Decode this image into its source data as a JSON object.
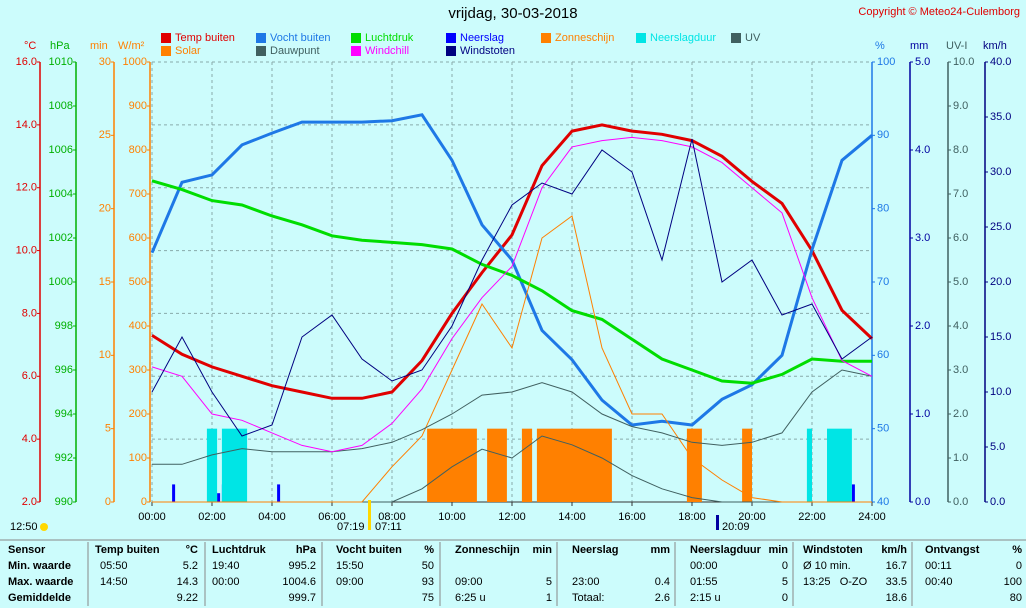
{
  "chart_data": {
    "type": "line",
    "title": "vrijdag, 30-03-2018",
    "copyright": "Copyright © Meteo24-Culemborg",
    "xlim": [
      0,
      24
    ],
    "xticks": [
      {
        "value": 0,
        "label": "00:00"
      },
      {
        "value": 2,
        "label": "02:00"
      },
      {
        "value": 4,
        "label": "04:00"
      },
      {
        "value": 6,
        "label": "06:00"
      },
      {
        "value": 8,
        "label": "08:00"
      },
      {
        "value": 10,
        "label": "10:00"
      },
      {
        "value": 12,
        "label": "12:00"
      },
      {
        "value": 14,
        "label": "14:00"
      },
      {
        "value": 16,
        "label": "16:00"
      },
      {
        "value": 18,
        "label": "18:00"
      },
      {
        "value": 20,
        "label": "20:00"
      },
      {
        "value": 22,
        "label": "22:00"
      },
      {
        "value": 24,
        "label": "24:00"
      }
    ],
    "grid": true,
    "x": [
      0,
      1,
      2,
      3,
      4,
      5,
      6,
      7,
      8,
      9,
      10,
      11,
      12,
      13,
      14,
      15,
      16,
      17,
      18,
      19,
      20,
      21,
      22,
      23,
      24
    ],
    "axes": [
      {
        "label": "°C",
        "color": "#e00000",
        "lim": [
          2,
          16
        ],
        "ticks": [
          {
            "value": 2,
            "label": "2.0"
          },
          {
            "value": 4,
            "label": "4.0"
          },
          {
            "value": 6,
            "label": "6.0"
          },
          {
            "value": 8,
            "label": "8.0"
          },
          {
            "value": 10,
            "label": "10.0"
          },
          {
            "value": 12,
            "label": "12.0"
          },
          {
            "value": 14,
            "label": "14.0"
          },
          {
            "value": 16,
            "label": "16.0"
          }
        ]
      },
      {
        "label": "hPa",
        "color": "#00b000",
        "lim": [
          990,
          1010
        ],
        "ticks": [
          990,
          992,
          994,
          996,
          998,
          1000,
          1002,
          1004,
          1006,
          1008,
          1010
        ]
      },
      {
        "label": "min",
        "color": "#ff8000",
        "lim": [
          0,
          30
        ],
        "ticks": [
          0,
          5,
          10,
          15,
          20,
          25,
          30
        ]
      },
      {
        "label": "W/m²",
        "color": "#ff8000",
        "lim": [
          0,
          1000
        ],
        "ticks": [
          0,
          100,
          200,
          300,
          400,
          500,
          600,
          700,
          800,
          900,
          1000
        ]
      },
      {
        "label": "%",
        "color": "#1e78e6",
        "lim": [
          40,
          100
        ],
        "ticks": [
          40,
          50,
          60,
          70,
          80,
          90,
          100
        ]
      },
      {
        "label": "mm",
        "color": "#0000a0",
        "lim": [
          0,
          5
        ],
        "ticks": [
          {
            "value": 0,
            "label": "0.0"
          },
          {
            "value": 1,
            "label": "1.0"
          },
          {
            "value": 2,
            "label": "2.0"
          },
          {
            "value": 3,
            "label": "3.0"
          },
          {
            "value": 4,
            "label": "4.0"
          },
          {
            "value": 5,
            "label": "5.0"
          }
        ]
      },
      {
        "label": "UV-I",
        "color": "#406060",
        "lim": [
          0,
          10
        ],
        "ticks": [
          {
            "value": 0,
            "label": "0.0"
          },
          {
            "value": 1,
            "label": "1.0"
          },
          {
            "value": 2,
            "label": "2.0"
          },
          {
            "value": 3,
            "label": "3.0"
          },
          {
            "value": 4,
            "label": "4.0"
          },
          {
            "value": 5,
            "label": "5.0"
          },
          {
            "value": 6,
            "label": "6.0"
          },
          {
            "value": 7,
            "label": "7.0"
          },
          {
            "value": 8,
            "label": "8.0"
          },
          {
            "value": 9,
            "label": "9.0"
          },
          {
            "value": 10,
            "label": "10.0"
          }
        ]
      },
      {
        "label": "km/h",
        "color": "#000080",
        "lim": [
          0,
          40
        ],
        "ticks": [
          {
            "value": 0,
            "label": "0.0"
          },
          {
            "value": 5,
            "label": "5.0"
          },
          {
            "value": 10,
            "label": "10.0"
          },
          {
            "value": 15,
            "label": "15.0"
          },
          {
            "value": 20,
            "label": "20.0"
          },
          {
            "value": 25,
            "label": "25.0"
          },
          {
            "value": 30,
            "label": "30.0"
          },
          {
            "value": 35,
            "label": "35.0"
          },
          {
            "value": 40,
            "label": "40.0"
          }
        ]
      }
    ],
    "series": [
      {
        "name": "Temp buiten",
        "color": "#e00000",
        "type": "line",
        "axis": 0,
        "width": 3,
        "values": [
          7.3,
          6.7,
          6.3,
          6.0,
          5.7,
          5.5,
          5.3,
          5.3,
          5.5,
          6.5,
          8.0,
          9.3,
          10.5,
          12.7,
          13.8,
          14.0,
          13.8,
          13.7,
          13.5,
          13.0,
          12.2,
          11.5,
          10.0,
          8.1,
          7.2
        ]
      },
      {
        "name": "Vocht buiten",
        "color": "#1e78e6",
        "type": "line",
        "axis": 4,
        "width": 3,
        "values": [
          74,
          83.6,
          84.6,
          88.7,
          90.3,
          91.8,
          91.8,
          91.8,
          92,
          92.8,
          86.6,
          77.8,
          73,
          63.4,
          59.4,
          53.9,
          50.5,
          51,
          50.5,
          54,
          56,
          60,
          74.4,
          86.6,
          90
        ]
      },
      {
        "name": "Luchtdruk",
        "color": "#00dd00",
        "type": "line",
        "axis": 1,
        "width": 3,
        "values": [
          1004.6,
          1004.2,
          1003.7,
          1003.5,
          1003.0,
          1002.6,
          1002.1,
          1001.9,
          1001.8,
          1001.7,
          1001.5,
          1000.8,
          1000.3,
          999.6,
          998.7,
          998.3,
          997.4,
          996.5,
          996.0,
          995.5,
          995.4,
          995.8,
          996.5,
          996.4,
          996.4
        ]
      },
      {
        "name": "Neerslag",
        "color": "#0000ff",
        "type": "bar",
        "axis": 5,
        "x": [
          0.67,
          2.17,
          2.33,
          2.5,
          2.67,
          2.83,
          4.17,
          22.5,
          22.67,
          22.83,
          23.0,
          23.17,
          23.33
        ],
        "values": [
          0.2,
          0.1,
          0.2,
          0.2,
          0.2,
          0.2,
          0.2,
          0.2,
          0.2,
          0.1,
          0.4,
          0.2,
          0.2
        ]
      },
      {
        "name": "Zonneschijn",
        "color": "#ff8000",
        "type": "bar",
        "axis": 2,
        "x": [
          9.17,
          11.17,
          12.33,
          12.83,
          17.83,
          19.67
        ],
        "x_end": [
          10.83,
          11.83,
          12.67,
          15.33,
          18.33,
          20.0
        ],
        "values": [
          5,
          5,
          5,
          5,
          5,
          5
        ]
      },
      {
        "name": "Neerslagduur",
        "color": "#00e5e5",
        "type": "bar",
        "axis": 2,
        "x": [
          1.83,
          2.33,
          21.83,
          22.5
        ],
        "x_end": [
          2.17,
          3.17,
          22.0,
          23.33
        ],
        "values": [
          5,
          5,
          5,
          5
        ]
      },
      {
        "name": "UV",
        "color": "#406060",
        "type": "line",
        "axis": 6,
        "width": 1,
        "values": [
          0,
          0,
          0,
          0,
          0,
          0,
          0,
          0,
          0,
          0.3,
          0.8,
          1.2,
          1.0,
          1.5,
          1.3,
          1.0,
          0.6,
          0.3,
          0.1,
          0,
          0,
          0,
          0,
          0,
          0
        ]
      },
      {
        "name": "Solar",
        "color": "#ff8000",
        "type": "line",
        "axis": 3,
        "width": 1,
        "values": [
          0,
          0,
          0,
          0,
          0,
          0,
          0,
          0,
          80,
          150,
          300,
          450,
          350,
          600,
          650,
          350,
          200,
          200,
          100,
          50,
          10,
          0,
          0,
          0,
          0
        ]
      },
      {
        "name": "Dauwpunt",
        "color": "#406060",
        "type": "line",
        "axis": 0,
        "width": 1,
        "values": [
          3.2,
          3.2,
          3.5,
          3.7,
          3.6,
          3.6,
          3.6,
          3.7,
          3.9,
          4.3,
          4.8,
          5.4,
          5.5,
          5.8,
          5.5,
          4.8,
          4.4,
          4.2,
          3.9,
          3.8,
          3.9,
          4.2,
          5.5,
          6.2,
          6.0
        ]
      },
      {
        "name": "Windchill",
        "color": "#ff00ff",
        "type": "line",
        "axis": 0,
        "width": 1,
        "values": [
          6.3,
          6.0,
          4.8,
          4.6,
          4.2,
          3.8,
          3.6,
          3.8,
          4.5,
          5.6,
          7.2,
          8.5,
          9.5,
          12.0,
          13.3,
          13.5,
          13.6,
          13.5,
          13.3,
          12.8,
          12.0,
          11.2,
          8.5,
          6.5,
          6.0
        ]
      },
      {
        "name": "Windstoten",
        "color": "#000080",
        "type": "line",
        "axis": 7,
        "width": 1,
        "values": [
          10,
          15,
          10,
          6,
          7,
          15,
          17,
          13,
          11,
          12,
          16,
          22,
          27,
          29,
          28,
          32,
          30,
          22,
          33,
          20,
          22,
          17,
          18,
          13,
          15
        ]
      }
    ],
    "annotations": [
      "12:50",
      "07:19",
      "07:11",
      "20:09"
    ],
    "table": {
      "header": [
        "Sensor",
        "Temp buiten",
        "°C",
        "Luchtdruk",
        "hPa",
        "Vocht buiten",
        "%",
        "Zonneschijn",
        "min",
        "Neerslag",
        "mm",
        "Neerslagduur",
        "min",
        "Windstoten",
        "km/h",
        "Ontvangst",
        "%"
      ],
      "rows": [
        [
          "Min. waarde",
          "05:50",
          "5.2",
          "19:40",
          "995.2",
          "15:50",
          "50",
          null,
          null,
          null,
          null,
          "00:00",
          "0",
          "Ø 10 min.",
          "16.7",
          "00:11",
          "0"
        ],
        [
          "Max. waarde",
          "14:50",
          "14.3",
          "00:00",
          "1004.6",
          "09:00",
          "93",
          "09:00",
          "5",
          "23:00",
          "0.4",
          "01:55",
          "5",
          "13:25   O-ZO",
          "33.5",
          "00:40",
          "100"
        ],
        [
          "Gemiddelde",
          null,
          "9.22",
          null,
          "999.7",
          null,
          "75",
          "6:25 u",
          "1",
          "Totaal:",
          "2.6",
          "2:15 u",
          "0",
          null,
          "18.6",
          null,
          "80"
        ]
      ]
    }
  }
}
